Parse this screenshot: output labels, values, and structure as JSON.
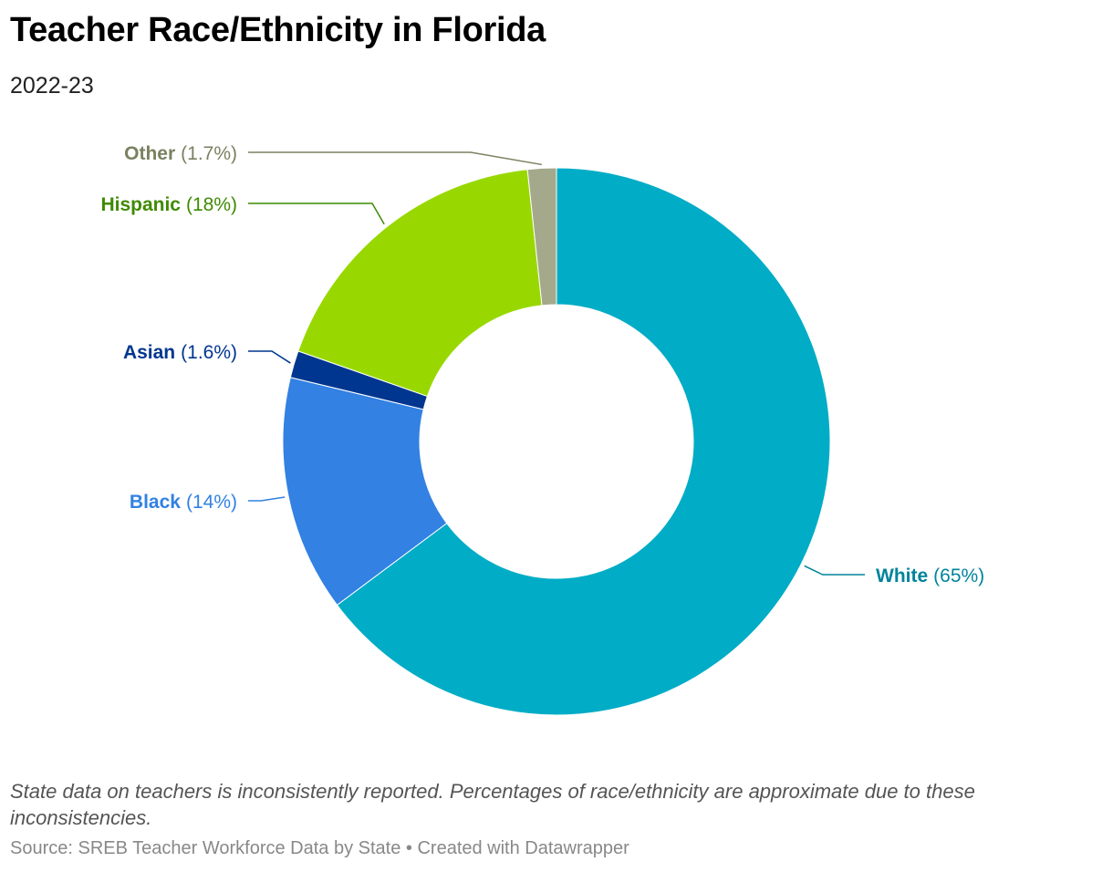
{
  "header": {
    "title": "Teacher Race/Ethnicity in Florida",
    "subtitle": "2022-23"
  },
  "footer": {
    "note": "State data on teachers is inconsistently reported. Percentages of race/ethnicity are approximate due to these inconsistencies.",
    "source": "Source: SREB Teacher Workforce Data by State • Created with Datawrapper"
  },
  "chart_data": {
    "type": "pie",
    "donut": true,
    "title": "Teacher Race/Ethnicity in Florida",
    "subtitle": "2022-23",
    "categories": [
      "White",
      "Black",
      "Asian",
      "Hispanic",
      "Other"
    ],
    "values": [
      65,
      14,
      1.6,
      18,
      1.7
    ],
    "value_labels": [
      "(65%)",
      "(14%)",
      "(1.6%)",
      "(18%)",
      "(1.7%)"
    ],
    "colors": [
      "#00acc6",
      "#3281e3",
      "#00368f",
      "#98d800",
      "#a3a98a"
    ],
    "label_colors": [
      "#00849c",
      "#3281e3",
      "#00368f",
      "#3f8a00",
      "#7a8160"
    ],
    "legend": "direct labels"
  }
}
